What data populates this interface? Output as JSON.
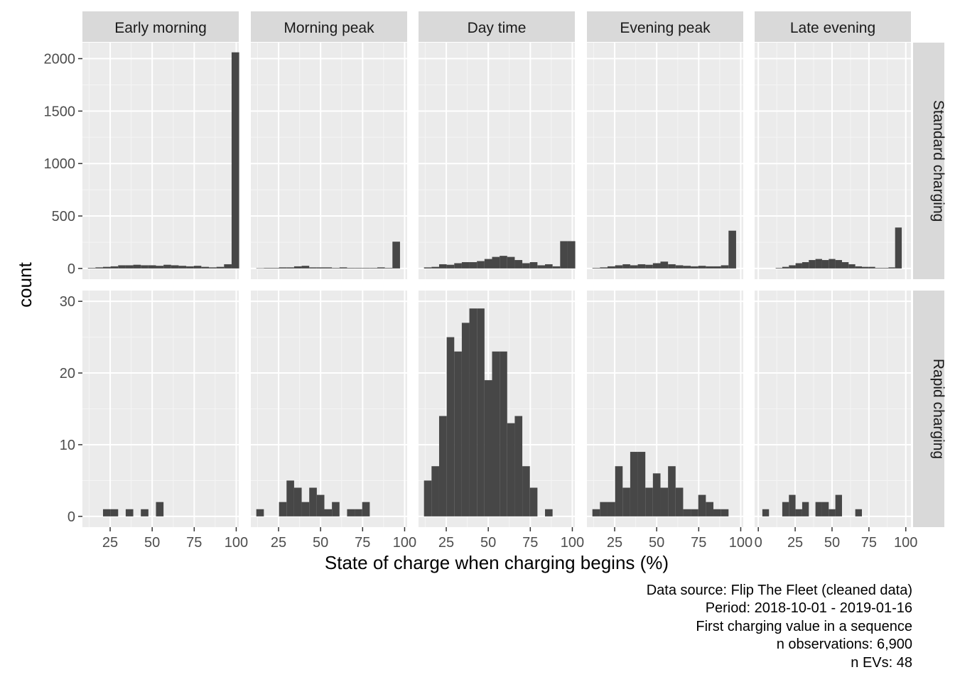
{
  "chart_data": {
    "type": "bar",
    "xlabel": "State of charge when charging begins (%)",
    "ylabel": "count",
    "columns": [
      "Early morning",
      "Morning peak",
      "Day time",
      "Evening peak",
      "Late evening"
    ],
    "rows": [
      {
        "label": "Standard charging",
        "ylim": [
          0,
          2050
        ],
        "y_ticks": [
          0,
          500,
          1000,
          1500,
          2000
        ]
      },
      {
        "label": "Rapid charging",
        "ylim": [
          0,
          30
        ],
        "y_ticks": [
          0,
          10,
          20,
          30
        ]
      }
    ],
    "x_ticks_per_column": [
      [
        25,
        50,
        75,
        100
      ],
      [
        25,
        50,
        75,
        100
      ],
      [
        25,
        50,
        75,
        100
      ],
      [
        25,
        50,
        75,
        100
      ],
      [
        0,
        25,
        50,
        75,
        100
      ]
    ],
    "bin_width": 4.5,
    "bar_color": "#474747",
    "panel_background": "#ebebeb",
    "strip_background": "#d9d9d9",
    "grid": true,
    "panels": [
      {
        "row": 0,
        "col": 0,
        "bin_centers": [
          14,
          18.5,
          23,
          27.5,
          32,
          36.5,
          41,
          45.5,
          50,
          54.5,
          59,
          63.5,
          68,
          72.5,
          77,
          81.5,
          86,
          90.5,
          95,
          99.5
        ],
        "counts": [
          5,
          10,
          15,
          20,
          30,
          30,
          35,
          30,
          30,
          25,
          35,
          30,
          25,
          20,
          25,
          15,
          10,
          15,
          40,
          2060
        ]
      },
      {
        "row": 0,
        "col": 1,
        "bin_centers": [
          14,
          18.5,
          23,
          27.5,
          32,
          36.5,
          41,
          45.5,
          50,
          54.5,
          59,
          63.5,
          68,
          72.5,
          77,
          81.5,
          86,
          90.5,
          95,
          99.5
        ],
        "counts": [
          2,
          5,
          5,
          10,
          10,
          20,
          25,
          10,
          10,
          10,
          5,
          10,
          5,
          5,
          5,
          5,
          10,
          5,
          255,
          0
        ]
      },
      {
        "row": 0,
        "col": 2,
        "bin_centers": [
          14,
          18.5,
          23,
          27.5,
          32,
          36.5,
          41,
          45.5,
          50,
          54.5,
          59,
          63.5,
          68,
          72.5,
          77,
          81.5,
          86,
          90.5,
          95,
          99.5
        ],
        "counts": [
          10,
          15,
          40,
          35,
          50,
          60,
          60,
          70,
          90,
          110,
          120,
          110,
          80,
          50,
          60,
          30,
          40,
          20,
          260,
          260
        ]
      },
      {
        "row": 0,
        "col": 3,
        "bin_centers": [
          14,
          18.5,
          23,
          27.5,
          32,
          36.5,
          41,
          45.5,
          50,
          54.5,
          59,
          63.5,
          68,
          72.5,
          77,
          81.5,
          86,
          90.5,
          95,
          99.5
        ],
        "counts": [
          5,
          10,
          20,
          30,
          40,
          30,
          40,
          35,
          50,
          65,
          40,
          30,
          25,
          20,
          25,
          20,
          20,
          30,
          360,
          0
        ]
      },
      {
        "row": 0,
        "col": 4,
        "bin_centers": [
          14,
          18.5,
          23,
          27.5,
          32,
          36.5,
          41,
          45.5,
          50,
          54.5,
          59,
          63.5,
          68,
          72.5,
          77,
          81.5,
          86,
          90.5,
          95,
          99.5
        ],
        "counts": [
          5,
          15,
          30,
          50,
          60,
          80,
          90,
          80,
          90,
          80,
          60,
          40,
          20,
          15,
          15,
          5,
          5,
          10,
          390,
          0
        ]
      },
      {
        "row": 1,
        "col": 0,
        "bin_centers": [
          14,
          18.5,
          23,
          27.5,
          32,
          36.5,
          41,
          45.5,
          50,
          54.5,
          59,
          63.5,
          68,
          72.5,
          77,
          81.5,
          86,
          90.5,
          95,
          99.5
        ],
        "counts": [
          0,
          0,
          1,
          1,
          0,
          1,
          0,
          1,
          0,
          2,
          0,
          0,
          0,
          0,
          0,
          0,
          0,
          0,
          0,
          0
        ]
      },
      {
        "row": 1,
        "col": 1,
        "bin_centers": [
          14,
          18.5,
          23,
          27.5,
          32,
          36.5,
          41,
          45.5,
          50,
          54.5,
          59,
          63.5,
          68,
          72.5,
          77,
          81.5,
          86,
          90.5,
          95,
          99.5
        ],
        "counts": [
          1,
          0,
          0,
          2,
          5,
          4,
          2,
          4,
          3,
          1,
          2,
          0,
          1,
          1,
          2,
          0,
          0,
          0,
          0,
          0
        ]
      },
      {
        "row": 1,
        "col": 2,
        "bin_centers": [
          14,
          18.5,
          23,
          27.5,
          32,
          36.5,
          41,
          45.5,
          50,
          54.5,
          59,
          63.5,
          68,
          72.5,
          77,
          81.5,
          86,
          90.5,
          95,
          99.5
        ],
        "counts": [
          5,
          7,
          14,
          25,
          23,
          27,
          29,
          29,
          19,
          23,
          23,
          13,
          14,
          7,
          4,
          0,
          1,
          0,
          0,
          0
        ]
      },
      {
        "row": 1,
        "col": 3,
        "bin_centers": [
          14,
          18.5,
          23,
          27.5,
          32,
          36.5,
          41,
          45.5,
          50,
          54.5,
          59,
          63.5,
          68,
          72.5,
          77,
          81.5,
          86,
          90.5,
          95,
          99.5
        ],
        "counts": [
          1,
          2,
          2,
          7,
          4,
          9,
          9,
          4,
          6,
          4,
          7,
          4,
          1,
          1,
          3,
          2,
          1,
          1,
          0,
          0
        ]
      },
      {
        "row": 1,
        "col": 4,
        "bin_centers": [
          5,
          9.5,
          14,
          18.5,
          23,
          27.5,
          32,
          36.5,
          41,
          45.5,
          50,
          54.5,
          59,
          63.5,
          68,
          72.5,
          77,
          81.5,
          86,
          90.5,
          95,
          99.5
        ],
        "counts": [
          1,
          0,
          0,
          2,
          3,
          1,
          2,
          0,
          2,
          2,
          1,
          3,
          0,
          0,
          1,
          0,
          0,
          0,
          0,
          0,
          0,
          0
        ]
      }
    ]
  },
  "caption": [
    "Data source: Flip The Fleet (cleaned data)",
    "Period: 2018-10-01 - 2019-01-16",
    "First charging value in a sequence",
    "n observations: 6,900",
    "n EVs: 48"
  ]
}
